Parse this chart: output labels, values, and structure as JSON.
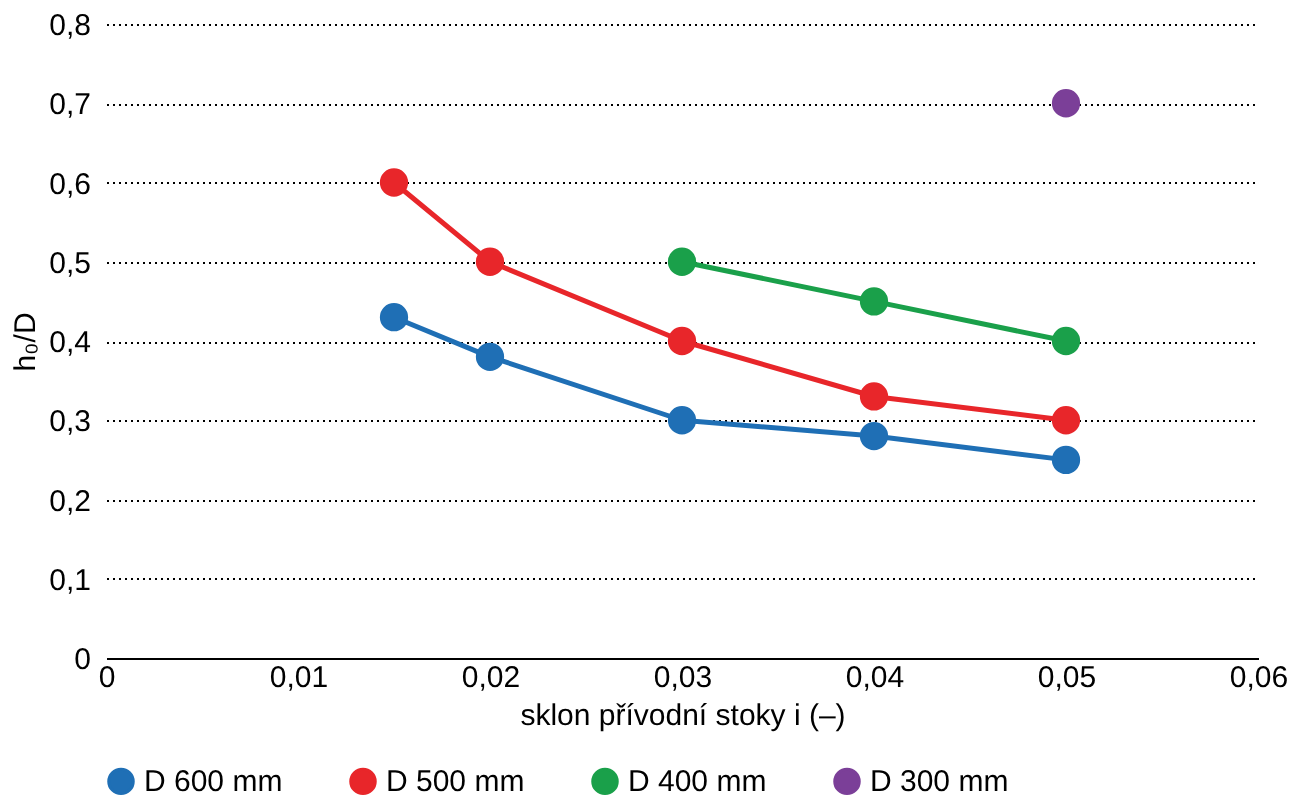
{
  "chart_data": {
    "type": "line",
    "xlabel": "sklon přívodní stoky i (–)",
    "ylabel": "h₀/D",
    "xlim": [
      0,
      0.06
    ],
    "ylim": [
      0,
      0.8
    ],
    "xticks": [
      0,
      {
        "value": 0.01,
        "label": "0,01"
      },
      {
        "value": 0.02,
        "label": "0,02"
      },
      {
        "value": 0.03,
        "label": "0,03"
      },
      {
        "value": 0.04,
        "label": "0,04"
      },
      {
        "value": 0.05,
        "label": "0,05"
      },
      {
        "value": 0.06,
        "label": "0,06"
      }
    ],
    "yticks": [
      0,
      {
        "value": 0.1,
        "label": "0,1"
      },
      {
        "value": 0.2,
        "label": "0,2"
      },
      {
        "value": 0.3,
        "label": "0,3"
      },
      {
        "value": 0.4,
        "label": "0,4"
      },
      {
        "value": 0.5,
        "label": "0,5"
      },
      {
        "value": 0.6,
        "label": "0,6"
      },
      {
        "value": 0.7,
        "label": "0,7"
      },
      {
        "value": 0.8,
        "label": "0,8"
      }
    ],
    "grid": "y",
    "legend": "bottom",
    "marker": "circle",
    "line_style": "solid",
    "series": [
      {
        "name": "D 600 mm",
        "color": "#1f6fb5",
        "type": "line",
        "x": [
          0.015,
          0.02,
          0.03,
          0.04,
          0.05
        ],
        "values": [
          0.43,
          0.38,
          0.3,
          0.28,
          0.25
        ]
      },
      {
        "name": "D 500 mm",
        "color": "#e8262a",
        "type": "line",
        "x": [
          0.015,
          0.02,
          0.03,
          0.04,
          0.05
        ],
        "values": [
          0.6,
          0.5,
          0.4,
          0.33,
          0.3
        ]
      },
      {
        "name": "D 400 mm",
        "color": "#1aa04a",
        "type": "line",
        "x": [
          0.03,
          0.04,
          0.05
        ],
        "values": [
          0.5,
          0.45,
          0.4
        ]
      },
      {
        "name": "D 300 mm",
        "color": "#7b3f98",
        "type": "scatter",
        "x": [
          0.05
        ],
        "values": [
          0.7
        ]
      }
    ]
  }
}
